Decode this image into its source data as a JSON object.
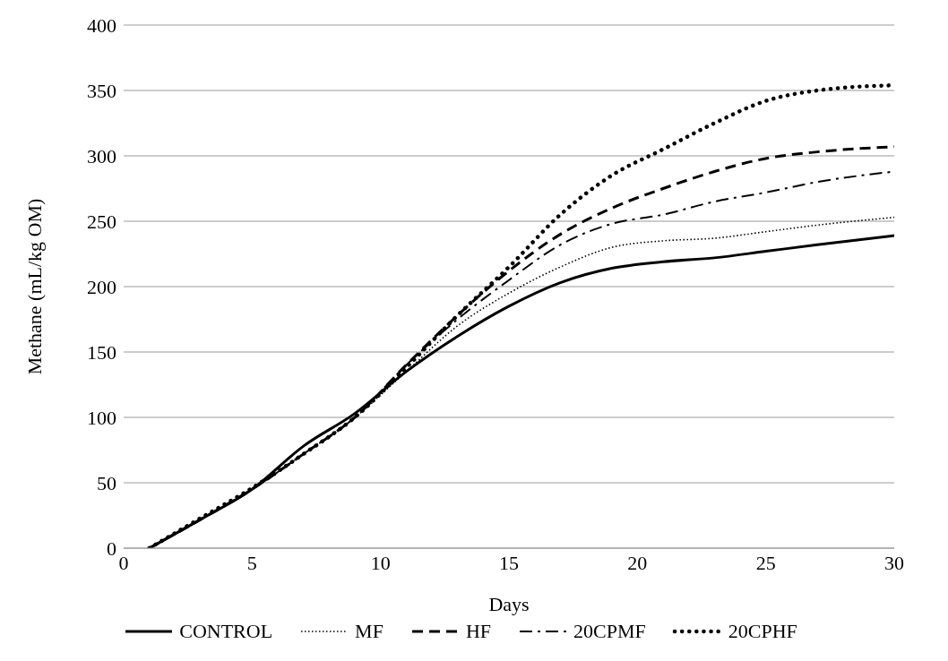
{
  "chart_data": {
    "type": "line",
    "xlabel": "Days",
    "ylabel": "Methane (mL/kg OM)",
    "x": [
      1,
      3,
      5,
      7,
      9,
      11,
      13,
      15,
      17,
      19,
      21,
      23,
      25,
      27,
      30
    ],
    "series": [
      {
        "name": "CONTROL",
        "color": "#000000",
        "line_style": "solid",
        "values": [
          0,
          22,
          45,
          78,
          103,
          135,
          162,
          185,
          203,
          214,
          219,
          222,
          227,
          232,
          239
        ]
      },
      {
        "name": "MF",
        "color": "#000000",
        "line_style": "dotted",
        "values": [
          0,
          22,
          45,
          72,
          100,
          135,
          170,
          195,
          215,
          230,
          235,
          237,
          242,
          247,
          253
        ]
      },
      {
        "name": "HF",
        "color": "#000000",
        "line_style": "dashed",
        "values": [
          0,
          22,
          45,
          72,
          100,
          140,
          178,
          212,
          240,
          260,
          275,
          288,
          298,
          303,
          307
        ]
      },
      {
        "name": "20CPMF",
        "color": "#000000",
        "line_style": "dashdot",
        "values": [
          0,
          22,
          45,
          72,
          100,
          140,
          175,
          205,
          232,
          248,
          255,
          265,
          272,
          280,
          288
        ]
      },
      {
        "name": "20CPHF",
        "color": "#000000",
        "line_style": "dotted",
        "values": [
          0,
          23,
          46,
          72,
          100,
          138,
          178,
          215,
          255,
          285,
          305,
          325,
          342,
          350,
          354
        ]
      }
    ],
    "xlim": [
      0,
      30
    ],
    "xticks": [
      0,
      5,
      10,
      15,
      20,
      25,
      30
    ],
    "ylim": [
      0,
      400
    ],
    "yticks": [
      0,
      50,
      100,
      150,
      200,
      250,
      300,
      350,
      400
    ],
    "grid": "y",
    "legend": "bottom",
    "marker": "none"
  }
}
